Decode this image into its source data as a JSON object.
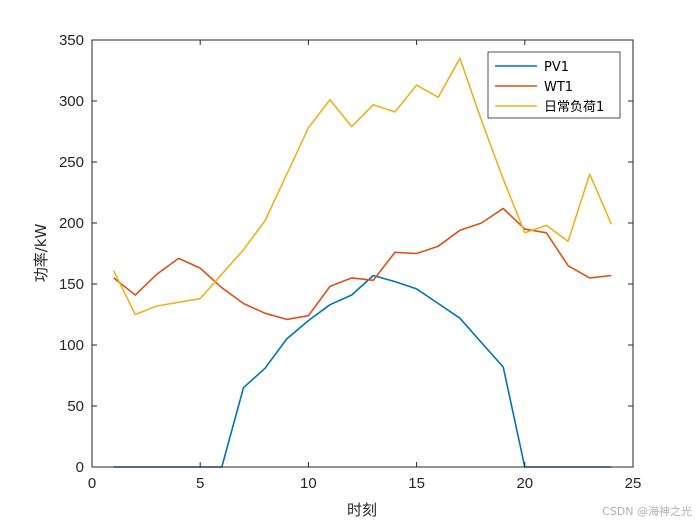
{
  "chart_data": {
    "type": "line",
    "title": "",
    "xlabel": "时刻",
    "ylabel": "功率/kW",
    "xlim": [
      0,
      25
    ],
    "ylim": [
      0,
      350
    ],
    "xticks": [
      0,
      5,
      10,
      15,
      20,
      25
    ],
    "yticks": [
      0,
      50,
      100,
      150,
      200,
      250,
      300,
      350
    ],
    "grid": false,
    "legend_position": "top-right",
    "x": [
      1,
      2,
      3,
      4,
      5,
      6,
      7,
      8,
      9,
      10,
      11,
      12,
      13,
      14,
      15,
      16,
      17,
      18,
      19,
      20,
      21,
      22,
      23,
      24
    ],
    "series": [
      {
        "name": "PV1",
        "color": "#0072BD",
        "values": [
          0,
          0,
          0,
          0,
          0,
          0,
          65,
          81,
          105,
          120,
          133,
          141,
          157,
          152,
          146,
          134,
          122,
          102,
          82,
          0,
          0,
          0,
          0,
          0
        ]
      },
      {
        "name": "WT1",
        "color": "#D95319",
        "values": [
          155,
          141,
          158,
          171,
          163,
          147,
          134,
          126,
          121,
          124,
          148,
          155,
          153,
          176,
          175,
          181,
          194,
          200,
          212,
          195,
          192,
          165,
          155,
          157
        ]
      },
      {
        "name": "日常负荷1",
        "color": "#EDB120",
        "values": [
          161,
          125,
          132,
          135,
          138,
          158,
          178,
          202,
          240,
          278,
          301,
          279,
          297,
          291,
          313,
          303,
          335,
          284,
          236,
          192,
          198,
          185,
          240,
          199
        ]
      }
    ]
  },
  "watermark": "CSDN @海神之光"
}
